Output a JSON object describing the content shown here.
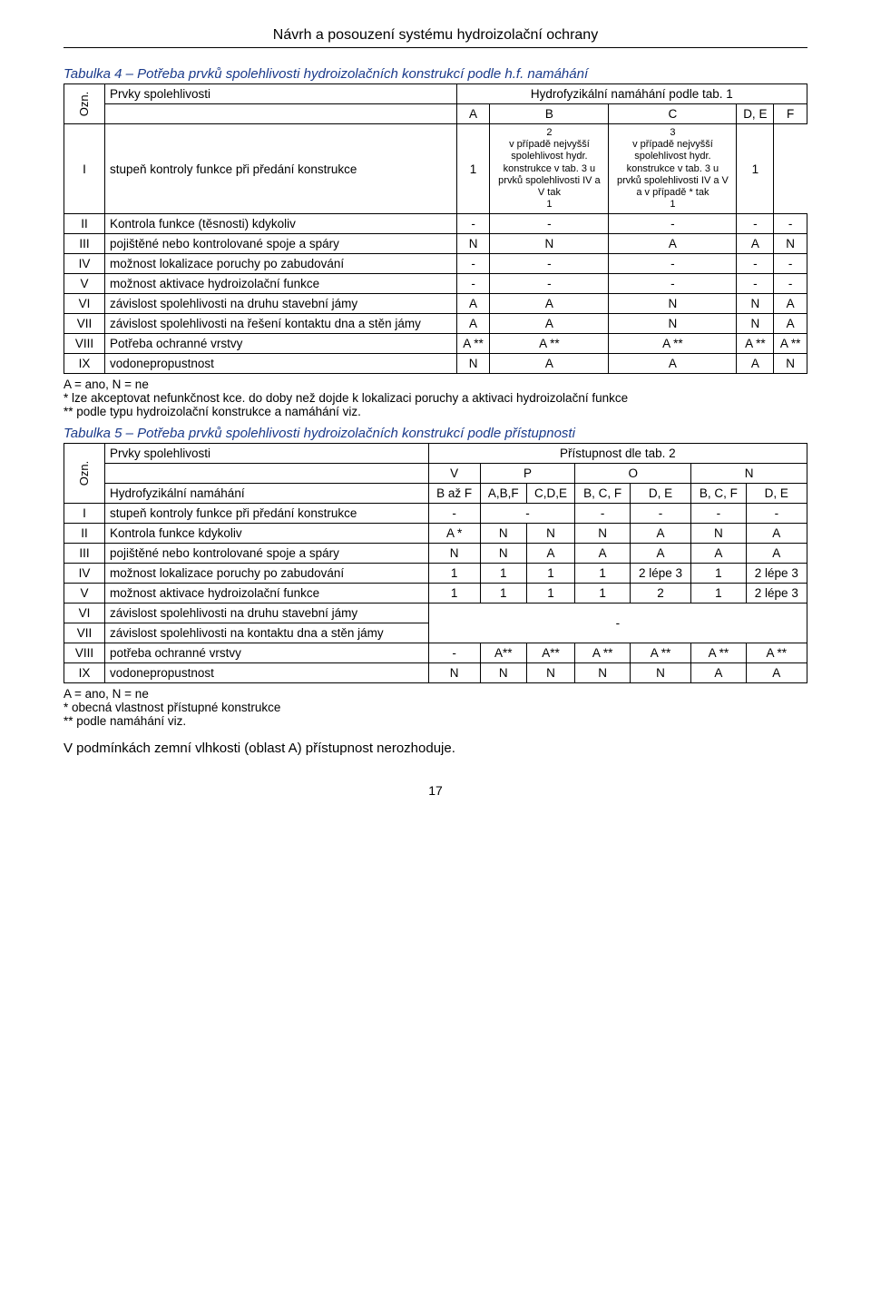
{
  "docTitle": "Návrh a posouzení systému hydroizolační ochrany",
  "tab4": {
    "caption": "Tabulka 4 – Potřeba prvků spolehlivosti hydroizolačních konstrukcí podle h.f. namáhání",
    "ozn": "Ozn.",
    "header": {
      "prvky": "Prvky spolehlivosti",
      "hydrofyz": "Hydrofyzikální namáhání podle tab. 1",
      "cols": [
        "A",
        "B",
        "C",
        "D, E",
        "F"
      ]
    },
    "colC_sub": "2\nv případě nejvyšší spolehlivost hydr. konstrukce v tab. 3 u prvků spolehlivosti IV a V  tak\n1",
    "colDE_sub": "3\nv případě nejvyšší spolehlivost hydr. konstrukce v tab. 3 u prvků spolehlivosti IV a V  a v případě *  tak\n1",
    "rows": [
      {
        "n": "I",
        "label": "stupeň kontroly funkce při předání konstrukce",
        "v": [
          "1",
          "colC",
          "colDE",
          "1"
        ]
      },
      {
        "n": "II",
        "label": "Kontrola funkce (těsnosti) kdykoliv",
        "v": [
          "-",
          "-",
          "-",
          "-",
          "-"
        ]
      },
      {
        "n": "III",
        "label": "pojištěné nebo kontrolované spoje a spáry",
        "v": [
          "N",
          "N",
          "A",
          "A",
          "N"
        ]
      },
      {
        "n": "IV",
        "label": "možnost lokalizace poruchy po zabudování",
        "v": [
          "-",
          "-",
          "-",
          "-",
          "-"
        ]
      },
      {
        "n": "V",
        "label": "možnost aktivace hydroizolační funkce",
        "v": [
          "-",
          "-",
          "-",
          "-",
          "-"
        ]
      },
      {
        "n": "VI",
        "label": "závislost spolehlivosti na druhu stavební jámy",
        "v": [
          "A",
          "A",
          "N",
          "N",
          "A"
        ]
      },
      {
        "n": "VII",
        "label": "závislost spolehlivosti na řešení kontaktu dna a stěn jámy",
        "v": [
          "A",
          "A",
          "N",
          "N",
          "A"
        ]
      },
      {
        "n": "VIII",
        "label": "Potřeba ochranné vrstvy",
        "v": [
          "A **",
          "A **",
          "A **",
          "A **",
          "A **"
        ]
      },
      {
        "n": "IX",
        "label": "vodonepropustnost",
        "v": [
          "N",
          "A",
          "A",
          "A",
          "N"
        ]
      }
    ],
    "notes": [
      "A = ano, N = ne",
      "*    lze akceptovat nefunkčnost kce. do doby než dojde k lokalizaci poruchy a aktivaci hydroizolační funkce",
      "**  podle typu hydroizolační konstrukce a namáhání viz."
    ]
  },
  "tab5": {
    "caption": "Tabulka 5 – Potřeba prvků spolehlivosti hydroizolačních konstrukcí podle přístupnosti",
    "ozn": "Ozn.",
    "header": {
      "prvky": "Prvky spolehlivosti",
      "pristup": "Přístupnost dle tab. 2",
      "cols": [
        "V",
        "P",
        "O",
        "N"
      ]
    },
    "rowHydro": {
      "label": "Hydrofyzikální namáhání",
      "v": [
        "B až F",
        "A,B,F",
        "C,D,E",
        "B, C, F",
        "D, E",
        "B, C, F",
        "D, E"
      ]
    },
    "rows": [
      {
        "n": "I",
        "label": "stupeň kontroly funkce při předání konstrukce",
        "v": [
          "-",
          "-",
          "-",
          "-",
          "-",
          "-"
        ]
      },
      {
        "n": "II",
        "label": "Kontrola funkce kdykoliv",
        "v": [
          "A *",
          "N",
          "N",
          "N",
          "A",
          "N",
          "A"
        ]
      },
      {
        "n": "III",
        "label": "pojištěné nebo kontrolované spoje a spáry",
        "v": [
          "N",
          "N",
          "A",
          "A",
          "A",
          "A",
          "A"
        ]
      },
      {
        "n": "IV",
        "label": "možnost lokalizace poruchy po zabudování",
        "v": [
          "1",
          "1",
          "1",
          "1",
          "2 lépe 3",
          "1",
          "2 lépe 3"
        ]
      },
      {
        "n": "V",
        "label": "možnost aktivace hydroizolační funkce",
        "v": [
          "1",
          "1",
          "1",
          "1",
          "2",
          "1",
          "2 lépe 3"
        ]
      },
      {
        "n": "VI",
        "label": "závislost spolehlivosti na druhu stavební jámy",
        "merged": true
      },
      {
        "n": "VII",
        "label": "závislost spolehlivosti na kontaktu dna a stěn jámy"
      },
      {
        "n": "VIII",
        "label": "potřeba ochranné vrstvy",
        "v": [
          "-",
          "A**",
          "A**",
          "A **",
          "A **",
          "A **",
          "A **"
        ]
      },
      {
        "n": "IX",
        "label": "vodonepropustnost",
        "v": [
          "N",
          "N",
          "N",
          "N",
          "N",
          "A",
          "A"
        ]
      }
    ],
    "mergedDash": "-",
    "notes": [
      "A = ano, N = ne",
      "*    obecná vlastnost přístupné konstrukce",
      "**  podle namáhání viz."
    ]
  },
  "footer": "V podmínkách zemní vlhkosti (oblast A) přístupnost nerozhoduje.",
  "pageNum": "17"
}
